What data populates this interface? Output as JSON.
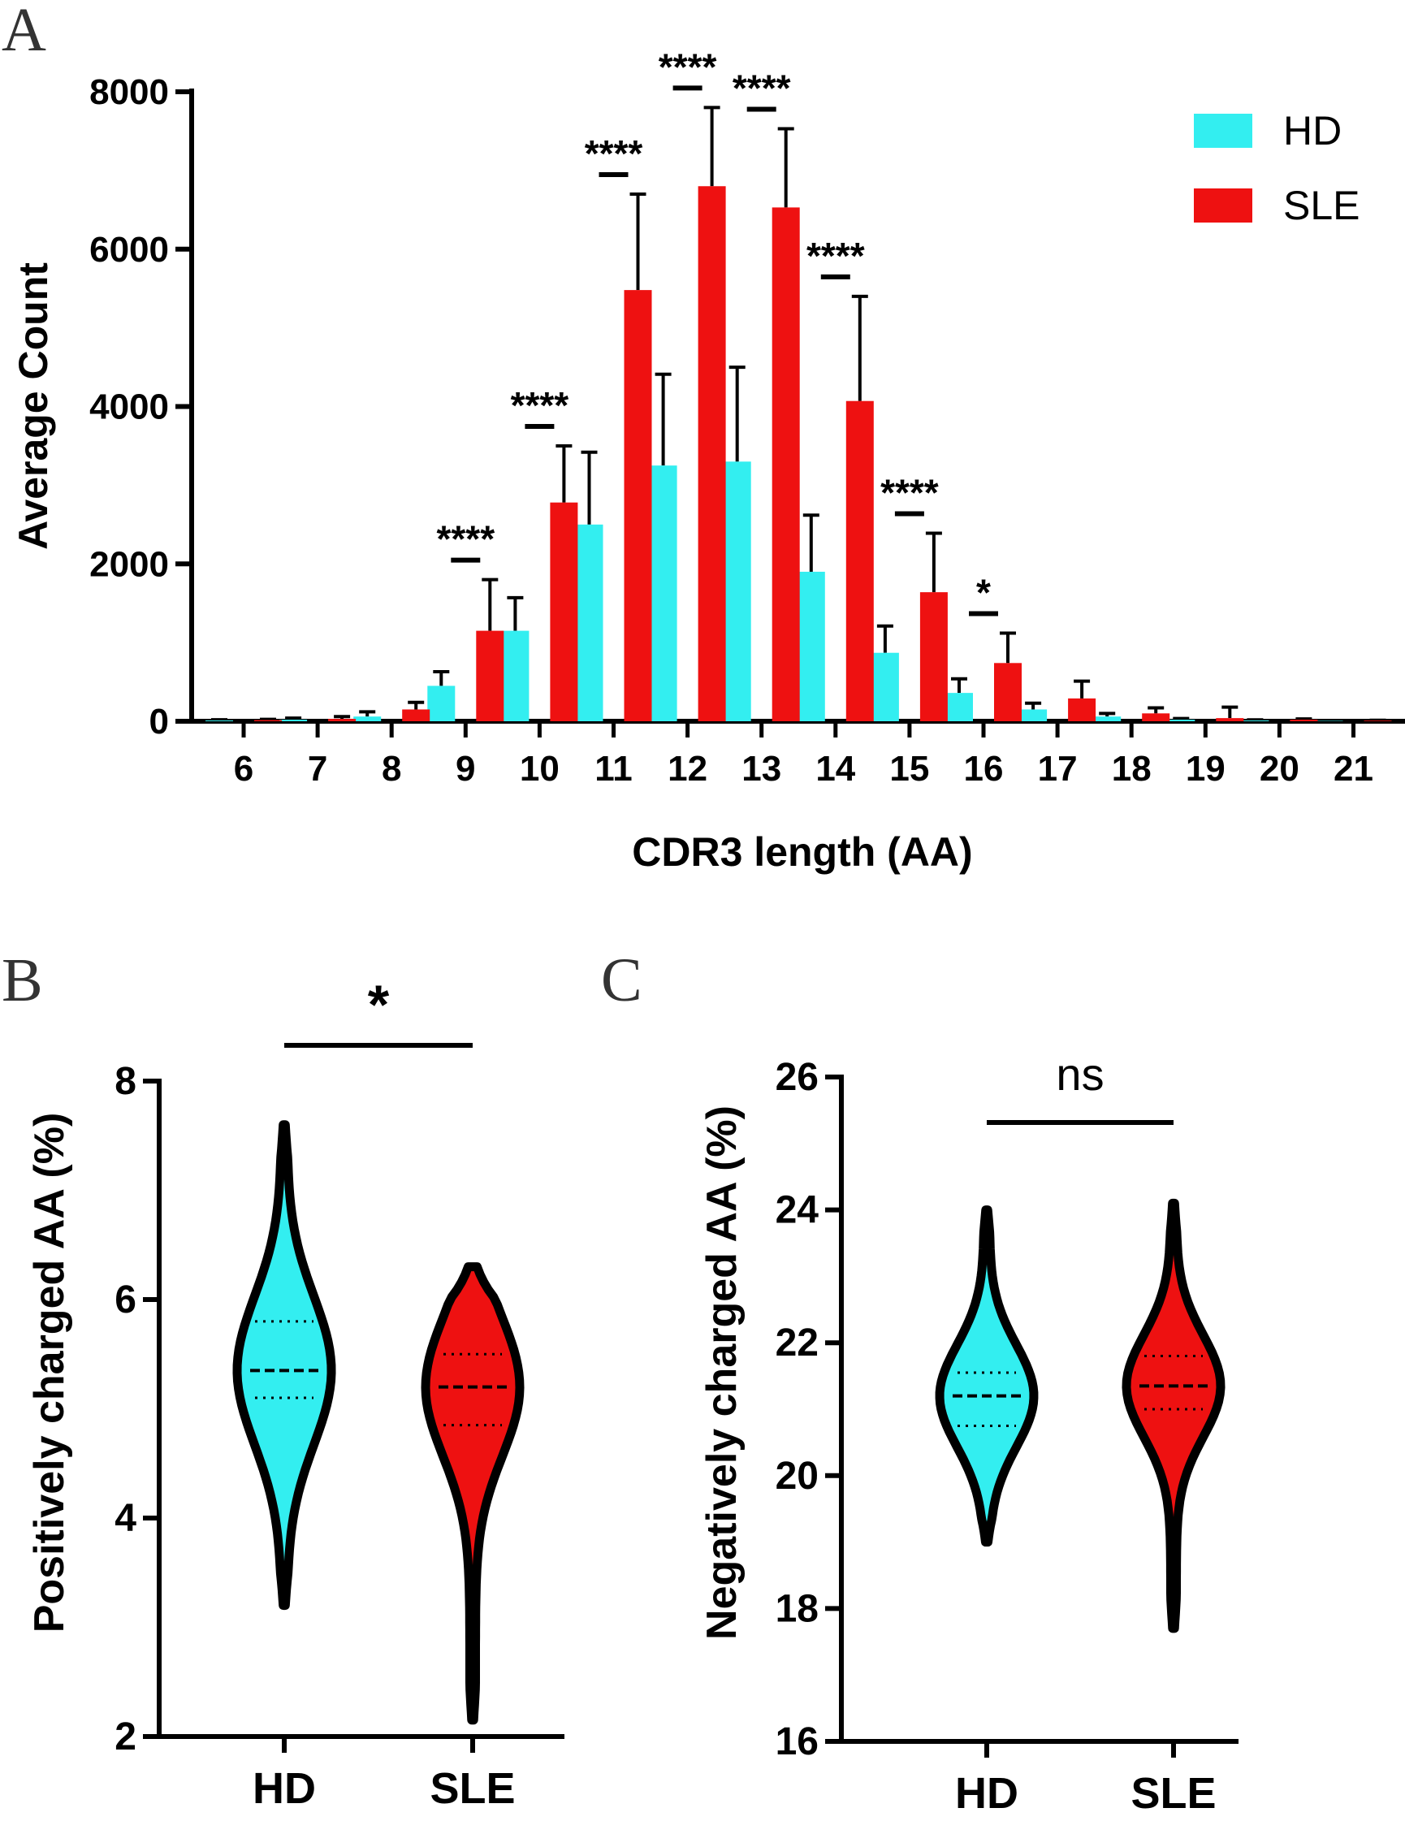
{
  "colors": {
    "HD": "#33eef0",
    "SLE": "#ee1111",
    "axis": "#000000"
  },
  "panels": {
    "A": "A",
    "B": "B",
    "C": "C"
  },
  "chart_data": [
    {
      "panel": "A",
      "type": "bar",
      "title": "",
      "xlabel": "CDR3 length (AA)",
      "ylabel": "Average Count",
      "ylim": [
        0,
        8000
      ],
      "yticks": [
        0,
        2000,
        4000,
        6000,
        8000
      ],
      "categories": [
        "6",
        "7",
        "8",
        "9",
        "10",
        "11",
        "12",
        "13",
        "14",
        "15",
        "16",
        "17",
        "18",
        "19",
        "20",
        "21"
      ],
      "series": [
        {
          "name": "HD",
          "values": [
            10,
            20,
            60,
            450,
            1150,
            2500,
            3250,
            3300,
            1900,
            870,
            360,
            150,
            60,
            20,
            10,
            5
          ],
          "errors": [
            10,
            20,
            60,
            180,
            420,
            920,
            1160,
            1200,
            720,
            340,
            180,
            80,
            40,
            15,
            8,
            4
          ]
        },
        {
          "name": "SLE",
          "values": [
            15,
            30,
            150,
            1150,
            2780,
            5480,
            6800,
            6530,
            4070,
            1640,
            740,
            290,
            100,
            40,
            20,
            8
          ],
          "errors": [
            10,
            30,
            90,
            650,
            720,
            1220,
            1000,
            1000,
            1330,
            750,
            380,
            220,
            70,
            140,
            10,
            5
          ]
        }
      ],
      "significance": [
        {
          "category": "9",
          "label": "****"
        },
        {
          "category": "10",
          "label": "****"
        },
        {
          "category": "11",
          "label": "****"
        },
        {
          "category": "12",
          "label": "****"
        },
        {
          "category": "13",
          "label": "****"
        },
        {
          "category": "14",
          "label": "****"
        },
        {
          "category": "15",
          "label": "****"
        },
        {
          "category": "16",
          "label": "*"
        }
      ],
      "legend": {
        "placement": "top-right",
        "entries": [
          "HD",
          "SLE"
        ]
      }
    },
    {
      "panel": "B",
      "type": "violin",
      "ylabel": "Positively charged AA (%)",
      "ylim": [
        2,
        8
      ],
      "yticks": [
        2,
        4,
        6,
        8
      ],
      "categories": [
        "HD",
        "SLE"
      ],
      "series": [
        {
          "name": "HD",
          "min": 3.2,
          "max": 7.6,
          "q1": 5.1,
          "median": 5.35,
          "q3": 5.8
        },
        {
          "name": "SLE",
          "min": 2.15,
          "max": 6.3,
          "q1": 4.85,
          "median": 5.2,
          "q3": 5.5
        }
      ],
      "significance": {
        "label": "*"
      }
    },
    {
      "panel": "C",
      "type": "violin",
      "ylabel": "Negatively charged AA (%)",
      "ylim": [
        16,
        26
      ],
      "yticks": [
        16,
        18,
        20,
        22,
        24,
        26
      ],
      "categories": [
        "HD",
        "SLE"
      ],
      "series": [
        {
          "name": "HD",
          "min": 19.0,
          "max": 24.0,
          "q1": 20.75,
          "median": 21.2,
          "q3": 21.55
        },
        {
          "name": "SLE",
          "min": 17.7,
          "max": 24.1,
          "q1": 21.0,
          "median": 21.35,
          "q3": 21.8
        }
      ],
      "significance": {
        "label": "ns"
      }
    }
  ]
}
